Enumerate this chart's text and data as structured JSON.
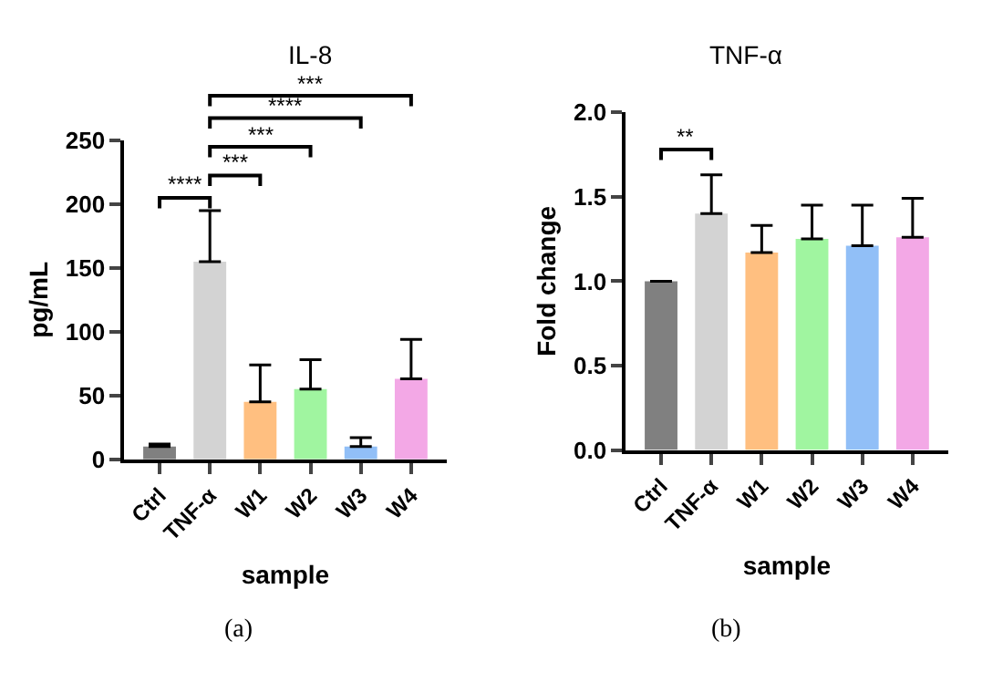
{
  "chart_data": [
    {
      "type": "bar",
      "title": "IL-8",
      "xlabel": "sample",
      "ylabel": "pg/mL",
      "categories": [
        "Ctrl",
        "TNF-α",
        "W1",
        "W2",
        "W3",
        "W4"
      ],
      "values": [
        10,
        155,
        45,
        55,
        10,
        63
      ],
      "colors": [
        "#808080",
        "#d3d3d3",
        "#ffbf80",
        "#a0f5a0",
        "#91bff7",
        "#f3a8e6"
      ],
      "errors": [
        [
          10,
          12
        ],
        [
          155,
          195
        ],
        [
          45,
          74
        ],
        [
          55,
          78
        ],
        [
          10,
          17
        ],
        [
          63,
          94
        ]
      ],
      "ylim": [
        0,
        250
      ],
      "yticks": [
        0,
        50,
        100,
        150,
        200,
        250
      ],
      "annotations": [
        "****",
        "***",
        "***",
        "****",
        "***",
        "(a)"
      ]
    },
    {
      "type": "bar",
      "title": "TNF-α",
      "xlabel": "sample",
      "ylabel": "Fold change",
      "categories": [
        "Ctrl",
        "TNF-α",
        "W1",
        "W2",
        "W3",
        "W4"
      ],
      "values": [
        1.0,
        1.4,
        1.17,
        1.25,
        1.21,
        1.26
      ],
      "colors": [
        "#808080",
        "#d3d3d3",
        "#ffbf80",
        "#a0f5a0",
        "#91bff7",
        "#f3a8e6"
      ],
      "errors": [
        null,
        [
          1.4,
          1.63
        ],
        [
          1.17,
          1.33
        ],
        [
          1.25,
          1.45
        ],
        [
          1.21,
          1.45
        ],
        [
          1.26,
          1.49
        ]
      ],
      "ylim": [
        0,
        2.0
      ],
      "yticks": [
        {
          "value": 0,
          "label": "0.0"
        },
        {
          "value": 0.5,
          "label": "0.5"
        },
        {
          "value": 1.0,
          "label": "1.0"
        },
        {
          "value": 1.5,
          "label": "1.5"
        },
        {
          "value": 2.0,
          "label": "2.0"
        }
      ],
      "annotations": [
        "**",
        "(b)"
      ]
    }
  ]
}
